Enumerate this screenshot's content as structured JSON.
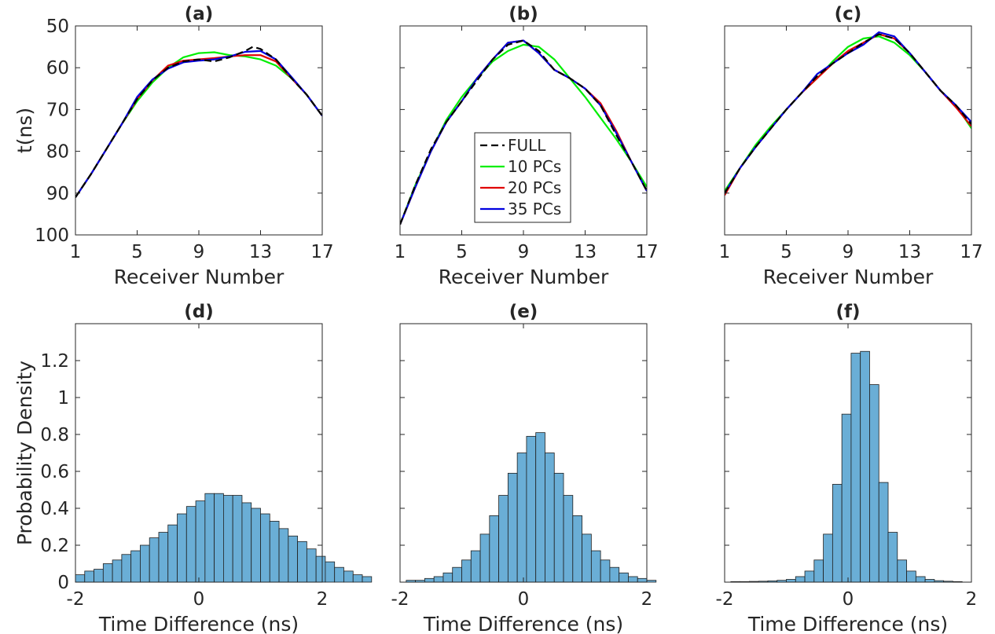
{
  "chart_data": [
    {
      "id": "a",
      "type": "line",
      "title": "(a)",
      "xlabel": "Receiver Number",
      "ylabel": "t(ns)",
      "xlim": [
        1,
        17
      ],
      "ylim": [
        50,
        100
      ],
      "y_reversed": true,
      "xticks": [
        "1",
        "5",
        "9",
        "13",
        "17"
      ],
      "yticks": [
        "50",
        "60",
        "70",
        "80",
        "90",
        "100"
      ],
      "grid": false,
      "series": [
        {
          "name": "FULL",
          "color": "#000000",
          "dash": true,
          "x": [
            1,
            2,
            3,
            4,
            5,
            6,
            7,
            8,
            9,
            10,
            11,
            12,
            12.5,
            13,
            14,
            15,
            16,
            17
          ],
          "y": [
            91,
            85.5,
            79.5,
            73.5,
            67.5,
            63,
            60,
            58.5,
            58,
            58.5,
            57.5,
            56,
            55,
            55.5,
            58,
            62.5,
            66.5,
            71.5
          ]
        },
        {
          "name": "10 PCs",
          "color": "#00ee00",
          "x": [
            1,
            2,
            3,
            4,
            5,
            6,
            7,
            8,
            9,
            10,
            11,
            12,
            13,
            14,
            15,
            16,
            17
          ],
          "y": [
            91,
            85.5,
            79.5,
            73.5,
            68,
            63.5,
            60,
            57.5,
            56.5,
            56.3,
            57,
            57.3,
            58,
            59.5,
            62.5,
            66.5,
            71.5
          ]
        },
        {
          "name": "20 PCs",
          "color": "#e00000",
          "x": [
            1,
            2,
            3,
            4,
            5,
            6,
            7,
            8,
            9,
            10,
            11,
            12,
            13,
            14,
            15,
            16,
            17
          ],
          "y": [
            91,
            85.5,
            79.5,
            73.5,
            67.5,
            63,
            59.5,
            58.3,
            58,
            57.7,
            57.3,
            57,
            57,
            58.5,
            62.5,
            66.5,
            71.5
          ]
        },
        {
          "name": "35 PCs",
          "color": "#0000e0",
          "x": [
            1,
            2,
            3,
            4,
            5,
            6,
            7,
            8,
            9,
            10,
            11,
            12,
            13,
            14,
            15,
            16,
            17
          ],
          "y": [
            91,
            85.5,
            79.5,
            73.5,
            67,
            62.8,
            60.2,
            58.7,
            58.3,
            58,
            57.3,
            56.2,
            56,
            58,
            62.2,
            66.5,
            71.5
          ]
        }
      ]
    },
    {
      "id": "b",
      "type": "line",
      "title": "(b)",
      "xlabel": "Receiver Number",
      "xlim": [
        1,
        17
      ],
      "ylim": [
        50,
        100
      ],
      "y_reversed": true,
      "xticks": [
        "1",
        "5",
        "9",
        "13",
        "17"
      ],
      "grid": false,
      "legend": {
        "position": "inside-center",
        "entries": [
          "FULL",
          "10 PCs",
          "20 PCs",
          "35 PCs"
        ]
      },
      "series": [
        {
          "name": "FULL",
          "color": "#000000",
          "dash": true,
          "x": [
            1,
            2,
            3,
            4,
            5,
            6,
            7,
            8,
            9,
            10,
            11,
            12,
            13,
            14,
            15,
            16,
            17
          ],
          "y": [
            97.5,
            88,
            79.5,
            73,
            68,
            63,
            58,
            54.5,
            53.5,
            56,
            60.5,
            62.5,
            65,
            69,
            76,
            82.5,
            89.5
          ]
        },
        {
          "name": "10 PCs",
          "color": "#00ee00",
          "x": [
            1,
            2,
            3,
            4,
            5,
            6,
            7,
            8,
            9,
            10,
            11,
            12,
            13,
            14,
            15,
            16,
            17
          ],
          "y": [
            97.5,
            88,
            80,
            72.5,
            67,
            62.5,
            58.5,
            56,
            54.5,
            55,
            58,
            62.5,
            67,
            72,
            77,
            82.5,
            88.5
          ]
        },
        {
          "name": "20 PCs",
          "color": "#e00000",
          "x": [
            1,
            2,
            3,
            4,
            5,
            6,
            7,
            8,
            9,
            10,
            11,
            12,
            13,
            14,
            15,
            16,
            17
          ],
          "y": [
            97.5,
            88.5,
            80,
            73,
            68,
            62.5,
            58,
            54,
            53.5,
            56.5,
            60.5,
            62.5,
            65,
            68.5,
            75,
            82.5,
            89.5
          ]
        },
        {
          "name": "35 PCs",
          "color": "#0000e0",
          "x": [
            1,
            2,
            3,
            4,
            5,
            6,
            7,
            8,
            9,
            10,
            11,
            12,
            13,
            14,
            15,
            16,
            17
          ],
          "y": [
            97.5,
            88.5,
            80,
            73,
            68,
            62.5,
            58,
            54,
            53.5,
            56.5,
            60.5,
            62.5,
            65,
            69,
            75.5,
            82.5,
            89.5
          ]
        }
      ]
    },
    {
      "id": "c",
      "type": "line",
      "title": "(c)",
      "xlabel": "Receiver Number",
      "xlim": [
        1,
        17
      ],
      "ylim": [
        50,
        100
      ],
      "y_reversed": true,
      "xticks": [
        "1",
        "5",
        "9",
        "13",
        "17"
      ],
      "grid": false,
      "series": [
        {
          "name": "FULL",
          "color": "#000000",
          "dash": true,
          "x": [
            1,
            2,
            3,
            4,
            5,
            6,
            7,
            8,
            9,
            10,
            11,
            12,
            13,
            14,
            15,
            16,
            17
          ],
          "y": [
            90,
            84,
            79,
            74.5,
            70,
            66,
            62,
            59,
            56.5,
            54,
            52,
            53,
            56.5,
            61,
            65.5,
            69,
            73.5
          ]
        },
        {
          "name": "10 PCs",
          "color": "#00ee00",
          "x": [
            1,
            2,
            3,
            4,
            5,
            6,
            7,
            8,
            9,
            10,
            11,
            12,
            13,
            14,
            15,
            16,
            17
          ],
          "y": [
            89.5,
            84,
            78.5,
            74,
            70,
            66,
            62.5,
            58.5,
            55,
            53,
            52.5,
            54,
            57,
            61,
            65.5,
            69,
            74.5
          ]
        },
        {
          "name": "20 PCs",
          "color": "#e00000",
          "x": [
            1,
            2,
            3,
            4,
            5,
            6,
            7,
            8,
            9,
            10,
            11,
            12,
            13,
            14,
            15,
            16,
            17
          ],
          "y": [
            90.5,
            84,
            79,
            74.5,
            70,
            66,
            62.5,
            59,
            56,
            54,
            52,
            53,
            56.5,
            61,
            65.5,
            69.5,
            74
          ]
        },
        {
          "name": "35 PCs",
          "color": "#0000e0",
          "x": [
            1,
            2,
            3,
            4,
            5,
            6,
            7,
            8,
            9,
            10,
            11,
            12,
            13,
            14,
            15,
            16,
            17
          ],
          "y": [
            90,
            84,
            79,
            74.5,
            70,
            66,
            61.5,
            59,
            56.5,
            54.5,
            51.5,
            52.5,
            56.5,
            61,
            65.5,
            69,
            73
          ]
        }
      ]
    },
    {
      "id": "d",
      "type": "bar",
      "title": "(d)",
      "xlabel": "Time Difference (ns)",
      "ylabel": "Probability Density",
      "xlim": [
        -2,
        2
      ],
      "ylim": [
        0,
        1.4
      ],
      "xticks": [
        "-2",
        "0",
        "2"
      ],
      "yticks": [
        "0",
        "0.2",
        "0.4",
        "0.6",
        "0.8",
        "1",
        "1.2"
      ],
      "grid": false,
      "bar_color": "#6aaed6",
      "bin_start": -2,
      "bin_width": 0.15,
      "values": [
        0.04,
        0.06,
        0.07,
        0.1,
        0.12,
        0.15,
        0.17,
        0.2,
        0.24,
        0.27,
        0.31,
        0.37,
        0.41,
        0.44,
        0.48,
        0.48,
        0.47,
        0.47,
        0.43,
        0.4,
        0.37,
        0.33,
        0.29,
        0.25,
        0.22,
        0.18,
        0.14,
        0.11,
        0.08,
        0.06,
        0.04,
        0.03
      ]
    },
    {
      "id": "e",
      "type": "bar",
      "title": "(e)",
      "xlabel": "Time Difference (ns)",
      "xlim": [
        -2,
        2
      ],
      "ylim": [
        0,
        1.4
      ],
      "xticks": [
        "-2",
        "0",
        "2"
      ],
      "grid": false,
      "bar_color": "#6aaed6",
      "bin_start": -1.9,
      "bin_width": 0.15,
      "values": [
        0.01,
        0.01,
        0.02,
        0.03,
        0.05,
        0.08,
        0.12,
        0.17,
        0.26,
        0.36,
        0.47,
        0.59,
        0.7,
        0.79,
        0.81,
        0.7,
        0.59,
        0.47,
        0.36,
        0.26,
        0.17,
        0.12,
        0.08,
        0.05,
        0.03,
        0.02,
        0.01
      ]
    },
    {
      "id": "f",
      "type": "bar",
      "title": "(f)",
      "xlabel": "Time Difference (ns)",
      "xlim": [
        -2,
        2
      ],
      "ylim": [
        0,
        1.4
      ],
      "xticks": [
        "-2",
        "0",
        "2"
      ],
      "grid": false,
      "bar_color": "#6aaed6",
      "bin_start": -1.9,
      "bin_width": 0.15,
      "values": [
        0.003,
        0.003,
        0.004,
        0.005,
        0.007,
        0.01,
        0.015,
        0.03,
        0.06,
        0.12,
        0.26,
        0.53,
        0.91,
        1.24,
        1.25,
        1.07,
        0.54,
        0.27,
        0.12,
        0.06,
        0.03,
        0.015,
        0.008,
        0.005,
        0.003
      ]
    }
  ]
}
